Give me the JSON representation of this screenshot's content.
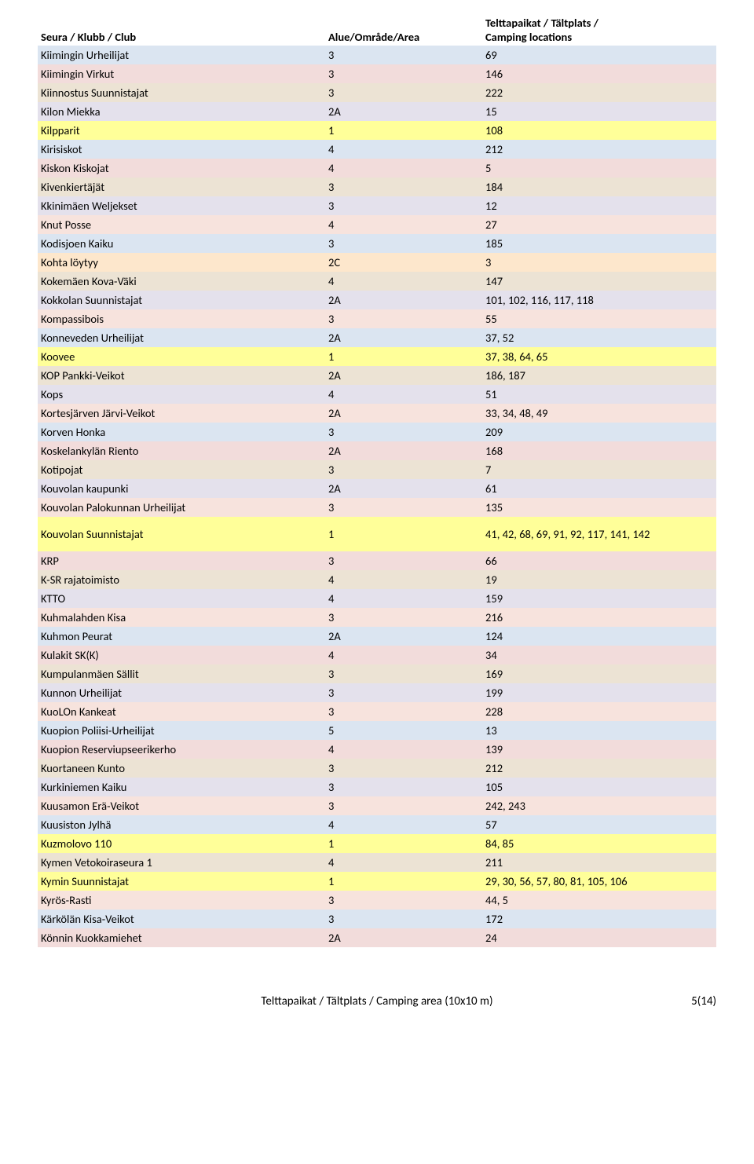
{
  "header": {
    "club": "Seura / Klubb / Club",
    "area": "Alue/Område/Area",
    "camp_line1": "Telttapaikat / Tältplats /",
    "camp_line2": "Camping locations"
  },
  "colors": {
    "blue": "#dbe5f1",
    "pink": "#f2dcdb",
    "tan": "#ece3d4",
    "lav": "#e4e1ec",
    "salmon": "#f7e3dd",
    "yellow": "#ffff99",
    "peach": "#fde7cc"
  },
  "rows": [
    {
      "club": "Kiimingin Urheilijat",
      "area": "3",
      "camp": "69",
      "c": "blue"
    },
    {
      "club": "Kiimingin Virkut",
      "area": "3",
      "camp": "146",
      "c": "pink"
    },
    {
      "club": "Kiinnostus Suunnistajat",
      "area": "3",
      "camp": "222",
      "c": "tan"
    },
    {
      "club": "Kilon Miekka",
      "area": "2A",
      "camp": "15",
      "c": "lav"
    },
    {
      "club": "Kilpparit",
      "area": "1",
      "camp": "108",
      "c": "yellow"
    },
    {
      "club": "Kirisiskot",
      "area": "4",
      "camp": "212",
      "c": "blue"
    },
    {
      "club": "Kiskon Kiskojat",
      "area": "4",
      "camp": "5",
      "c": "pink"
    },
    {
      "club": "Kivenkiertäjät",
      "area": "3",
      "camp": "184",
      "c": "tan"
    },
    {
      "club": "Kkinimäen Weljekset",
      "area": "3",
      "camp": "12",
      "c": "lav"
    },
    {
      "club": "Knut Posse",
      "area": "4",
      "camp": "27",
      "c": "salmon"
    },
    {
      "club": "Kodisjoen Kaiku",
      "area": "3",
      "camp": "185",
      "c": "blue"
    },
    {
      "club": "Kohta löytyy",
      "area": "2C",
      "camp": "3",
      "c": "peach"
    },
    {
      "club": "Kokemäen Kova-Väki",
      "area": "4",
      "camp": "147",
      "c": "tan"
    },
    {
      "club": "Kokkolan Suunnistajat",
      "area": "2A",
      "camp": "101, 102, 116, 117, 118",
      "c": "lav"
    },
    {
      "club": "Kompassibois",
      "area": "3",
      "camp": "55",
      "c": "salmon"
    },
    {
      "club": "Konneveden Urheilijat",
      "area": "2A",
      "camp": "37, 52",
      "c": "blue"
    },
    {
      "club": "Koovee",
      "area": "1",
      "camp": "37, 38, 64, 65",
      "c": "yellow"
    },
    {
      "club": "KOP Pankki-Veikot",
      "area": "2A",
      "camp": "186, 187",
      "c": "tan"
    },
    {
      "club": "Kops",
      "area": "4",
      "camp": "51",
      "c": "lav"
    },
    {
      "club": "Kortesjärven Järvi-Veikot",
      "area": "2A",
      "camp": "33, 34, 48, 49",
      "c": "salmon"
    },
    {
      "club": "Korven Honka",
      "area": "3",
      "camp": "209",
      "c": "blue"
    },
    {
      "club": "Koskelankylän Riento",
      "area": "2A",
      "camp": "168",
      "c": "pink"
    },
    {
      "club": "Kotipojat",
      "area": "3",
      "camp": "7",
      "c": "tan"
    },
    {
      "club": "Kouvolan kaupunki",
      "area": "2A",
      "camp": "61",
      "c": "lav"
    },
    {
      "club": "Kouvolan Palokunnan Urheilijat",
      "area": "3",
      "camp": "135",
      "c": "salmon"
    },
    {
      "club": "Kouvolan Suunnistajat",
      "area": "1",
      "camp": "41, 42, 68, 69, 91, 92, 117, 141, 142",
      "c": "yellow",
      "tall": true
    },
    {
      "club": "KRP",
      "area": "3",
      "camp": "66",
      "c": "pink"
    },
    {
      "club": "K-SR rajatoimisto",
      "area": "4",
      "camp": "19",
      "c": "tan"
    },
    {
      "club": "KTTO",
      "area": "4",
      "camp": "159",
      "c": "lav"
    },
    {
      "club": "Kuhmalahden Kisa",
      "area": "3",
      "camp": "216",
      "c": "salmon"
    },
    {
      "club": "Kuhmon Peurat",
      "area": "2A",
      "camp": "124",
      "c": "blue"
    },
    {
      "club": "Kulakit SK(K)",
      "area": "4",
      "camp": "34",
      "c": "pink"
    },
    {
      "club": "Kumpulanmäen Sällit",
      "area": "3",
      "camp": "169",
      "c": "tan"
    },
    {
      "club": "Kunnon Urheilijat",
      "area": "3",
      "camp": "199",
      "c": "lav"
    },
    {
      "club": "KuoLOn Kankeat",
      "area": "3",
      "camp": "228",
      "c": "salmon"
    },
    {
      "club": "Kuopion Poliisi-Urheilijat",
      "area": "5",
      "camp": "13",
      "c": "blue"
    },
    {
      "club": "Kuopion Reserviupseerikerho",
      "area": "4",
      "camp": "139",
      "c": "pink"
    },
    {
      "club": "Kuortaneen Kunto",
      "area": "3",
      "camp": "212",
      "c": "tan"
    },
    {
      "club": "Kurkiniemen Kaiku",
      "area": "3",
      "camp": "105",
      "c": "lav"
    },
    {
      "club": "Kuusamon Erä-Veikot",
      "area": "3",
      "camp": "242, 243",
      "c": "salmon"
    },
    {
      "club": "Kuusiston Jylhä",
      "area": "4",
      "camp": "57",
      "c": "blue"
    },
    {
      "club": "Kuzmolovo 110",
      "area": "1",
      "camp": "84, 85",
      "c": "yellow"
    },
    {
      "club": "Kymen Vetokoiraseura 1",
      "area": "4",
      "camp": "211",
      "c": "tan"
    },
    {
      "club": "Kymin Suunnistajat",
      "area": "1",
      "camp": "29, 30, 56, 57, 80, 81, 105, 106",
      "c": "yellow"
    },
    {
      "club": "Kyrös-Rasti",
      "area": "3",
      "camp": "44, 5",
      "c": "salmon"
    },
    {
      "club": "Kärkölän Kisa-Veikot",
      "area": "3",
      "camp": "172",
      "c": "blue"
    },
    {
      "club": "Könnin Kuokkamiehet",
      "area": "2A",
      "camp": "24",
      "c": "pink"
    }
  ],
  "footer": {
    "left": "Telttapaikat / Tältplats / Camping area (10x10 m)",
    "right": "5(14)"
  }
}
